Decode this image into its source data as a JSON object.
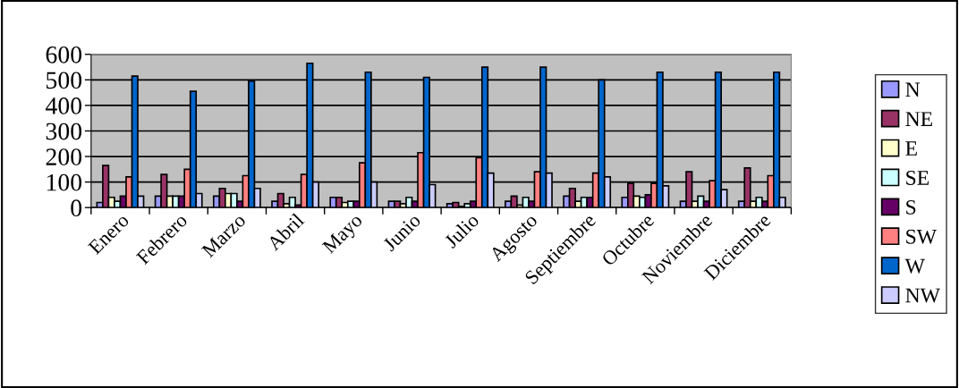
{
  "chart_data": {
    "type": "bar",
    "categories": [
      "Enero",
      "Febrero",
      "Marzo",
      "Abril",
      "Mayo",
      "Junio",
      "Julio",
      "Agosto",
      "Septiembre",
      "Octubre",
      "Noviembre",
      "Diciembre"
    ],
    "series": [
      {
        "name": "N",
        "color": "#9999ff",
        "values": [
          20,
          45,
          45,
          25,
          40,
          25,
          15,
          25,
          45,
          40,
          25,
          25
        ]
      },
      {
        "name": "NE",
        "color": "#993366",
        "values": [
          165,
          130,
          75,
          55,
          40,
          25,
          20,
          45,
          75,
          95,
          140,
          155
        ]
      },
      {
        "name": "E",
        "color": "#ffffcc",
        "values": [
          40,
          45,
          55,
          15,
          20,
          15,
          5,
          10,
          25,
          45,
          25,
          25
        ]
      },
      {
        "name": "SE",
        "color": "#ccffff",
        "values": [
          25,
          45,
          55,
          40,
          25,
          40,
          15,
          40,
          40,
          40,
          45,
          40
        ]
      },
      {
        "name": "S",
        "color": "#660066",
        "values": [
          45,
          45,
          25,
          10,
          25,
          25,
          25,
          25,
          40,
          50,
          25,
          25
        ]
      },
      {
        "name": "SW",
        "color": "#ff8080",
        "values": [
          120,
          150,
          125,
          130,
          175,
          215,
          195,
          140,
          135,
          95,
          105,
          125
        ]
      },
      {
        "name": "W",
        "color": "#0066cc",
        "values": [
          515,
          455,
          495,
          565,
          530,
          510,
          550,
          550,
          500,
          530,
          530,
          530
        ]
      },
      {
        "name": "NW",
        "color": "#ccccff",
        "values": [
          45,
          55,
          75,
          100,
          100,
          90,
          135,
          135,
          120,
          85,
          70,
          40
        ]
      }
    ],
    "ylim": [
      0,
      600
    ],
    "yticks": [
      0,
      100,
      200,
      300,
      400,
      500,
      600
    ],
    "grid": "y",
    "legend": "right"
  }
}
